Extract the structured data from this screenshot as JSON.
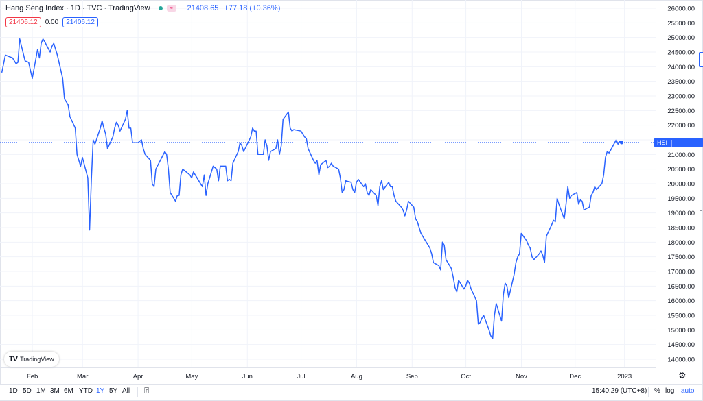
{
  "header": {
    "title": "Hang Seng Index · 1D · TVC · TradingView",
    "price": "21408.65",
    "change": "+77.18 (+0.36%)"
  },
  "legend": {
    "value_red": "21406.12",
    "value_mid": "0.00",
    "value_blue": "21406.12"
  },
  "colors": {
    "line": "#2962ff",
    "accent": "#2962ff",
    "negative": "#f23645",
    "live_dot": "#26a69a",
    "grid": "#f0f3fa"
  },
  "price_axis": {
    "ticks": [
      "26000.00",
      "25500.00",
      "25000.00",
      "24500.00",
      "24000.00",
      "23500.00",
      "23000.00",
      "22500.00",
      "22000.00",
      "21500.00",
      "21000.00",
      "20500.00",
      "20000.00",
      "19500.00",
      "19000.00",
      "18500.00",
      "18000.00",
      "17500.00",
      "17000.00",
      "16500.00",
      "16000.00",
      "15500.00",
      "15000.00",
      "14500.00",
      "14000.00"
    ]
  },
  "last_price": {
    "symbol": "HSI",
    "value": "21408.65"
  },
  "time_axis": {
    "labels": [
      "Feb",
      "Mar",
      "Apr",
      "May",
      "Jun",
      "Jul",
      "Aug",
      "Sep",
      "Oct",
      "Nov",
      "Dec",
      "2023"
    ]
  },
  "watermark": {
    "logo": "TV",
    "text": "TradingView"
  },
  "bottom_bar": {
    "ranges": [
      "1D",
      "5D",
      "1M",
      "3M",
      "6M",
      "YTD",
      "1Y",
      "5Y",
      "All"
    ],
    "active_range": "1Y",
    "compare_icon": "calendar-range-icon",
    "time": "15:40:29 (UTC+8)",
    "percent": "%",
    "log": "log",
    "auto": "auto"
  },
  "settings_icon": "gear-icon",
  "chart_data": {
    "type": "line",
    "title": "Hang Seng Index · 1D · TVC · TradingView",
    "xlabel": "",
    "ylabel": "",
    "ylim": [
      14000,
      26000
    ],
    "x_tick_labels": [
      "Feb",
      "Mar",
      "Apr",
      "May",
      "Jun",
      "Jul",
      "Aug",
      "Sep",
      "Oct",
      "Nov",
      "Dec",
      "2023"
    ],
    "grid": true,
    "series": [
      {
        "name": "HSI",
        "points": [
          [
            "2022-01-18",
            23800
          ],
          [
            "2022-01-20",
            24400
          ],
          [
            "2022-01-24",
            24300
          ],
          [
            "2022-01-26",
            24100
          ],
          [
            "2022-01-27",
            24150
          ],
          [
            "2022-01-28",
            24950
          ],
          [
            "2022-01-31",
            24200
          ],
          [
            "2022-02-02",
            24150
          ],
          [
            "2022-02-04",
            23600
          ],
          [
            "2022-02-07",
            24600
          ],
          [
            "2022-02-08",
            24300
          ],
          [
            "2022-02-09",
            24800
          ],
          [
            "2022-02-10",
            24950
          ],
          [
            "2022-02-11",
            24850
          ],
          [
            "2022-02-14",
            24500
          ],
          [
            "2022-02-15",
            24700
          ],
          [
            "2022-02-16",
            24800
          ],
          [
            "2022-02-17",
            24600
          ],
          [
            "2022-02-18",
            24400
          ],
          [
            "2022-02-21",
            23600
          ],
          [
            "2022-02-22",
            22900
          ],
          [
            "2022-02-23",
            22800
          ],
          [
            "2022-02-24",
            22700
          ],
          [
            "2022-02-25",
            22300
          ],
          [
            "2022-02-28",
            21900
          ],
          [
            "2022-03-01",
            21000
          ],
          [
            "2022-03-02",
            20800
          ],
          [
            "2022-03-03",
            20600
          ],
          [
            "2022-03-04",
            20900
          ],
          [
            "2022-03-07",
            20200
          ],
          [
            "2022-03-08",
            18415
          ],
          [
            "2022-03-09",
            20150
          ],
          [
            "2022-03-10",
            21500
          ],
          [
            "2022-03-11",
            21350
          ],
          [
            "2022-03-14",
            21900
          ],
          [
            "2022-03-15",
            22150
          ],
          [
            "2022-03-16",
            21900
          ],
          [
            "2022-03-17",
            21700
          ],
          [
            "2022-03-18",
            21200
          ],
          [
            "2022-03-21",
            21600
          ],
          [
            "2022-03-22",
            21900
          ],
          [
            "2022-03-23",
            22100
          ],
          [
            "2022-03-24",
            22000
          ],
          [
            "2022-03-25",
            21800
          ],
          [
            "2022-03-28",
            22200
          ],
          [
            "2022-03-29",
            22500
          ],
          [
            "2022-03-30",
            21900
          ],
          [
            "2022-03-31",
            21900
          ],
          [
            "2022-04-01",
            21400
          ],
          [
            "2022-04-04",
            21400
          ],
          [
            "2022-04-06",
            21500
          ],
          [
            "2022-04-07",
            21200
          ],
          [
            "2022-04-08",
            21000
          ],
          [
            "2022-04-11",
            20800
          ],
          [
            "2022-04-12",
            20000
          ],
          [
            "2022-04-13",
            19900
          ],
          [
            "2022-04-14",
            20500
          ],
          [
            "2022-04-19",
            21100
          ],
          [
            "2022-04-20",
            21000
          ],
          [
            "2022-04-21",
            20500
          ],
          [
            "2022-04-22",
            19700
          ],
          [
            "2022-04-25",
            19400
          ],
          [
            "2022-04-26",
            19600
          ],
          [
            "2022-04-27",
            19600
          ],
          [
            "2022-04-28",
            20300
          ],
          [
            "2022-04-29",
            20500
          ],
          [
            "2022-05-03",
            20300
          ],
          [
            "2022-05-04",
            20200
          ],
          [
            "2022-05-05",
            20400
          ],
          [
            "2022-05-06",
            20300
          ],
          [
            "2022-05-10",
            19900
          ],
          [
            "2022-05-11",
            20300
          ],
          [
            "2022-05-12",
            19600
          ],
          [
            "2022-05-13",
            20000
          ],
          [
            "2022-05-16",
            20600
          ],
          [
            "2022-05-17",
            20550
          ],
          [
            "2022-05-18",
            20500
          ],
          [
            "2022-05-19",
            20100
          ],
          [
            "2022-05-20",
            20600
          ],
          [
            "2022-05-23",
            20600
          ],
          [
            "2022-05-24",
            20100
          ],
          [
            "2022-05-25",
            20150
          ],
          [
            "2022-05-26",
            20100
          ],
          [
            "2022-05-27",
            20700
          ],
          [
            "2022-05-30",
            21100
          ],
          [
            "2022-05-31",
            21400
          ],
          [
            "2022-06-01",
            21300
          ],
          [
            "2022-06-02",
            21100
          ],
          [
            "2022-06-06",
            21600
          ],
          [
            "2022-06-07",
            21900
          ],
          [
            "2022-06-08",
            21800
          ],
          [
            "2022-06-09",
            21800
          ],
          [
            "2022-06-10",
            21000
          ],
          [
            "2022-06-13",
            21000
          ],
          [
            "2022-06-14",
            21500
          ],
          [
            "2022-06-15",
            21300
          ],
          [
            "2022-06-16",
            20800
          ],
          [
            "2022-06-17",
            21100
          ],
          [
            "2022-06-20",
            21200
          ],
          [
            "2022-06-21",
            21500
          ],
          [
            "2022-06-22",
            21000
          ],
          [
            "2022-06-23",
            21300
          ],
          [
            "2022-06-24",
            22200
          ],
          [
            "2022-06-27",
            22450
          ],
          [
            "2022-06-28",
            21900
          ],
          [
            "2022-06-29",
            21800
          ],
          [
            "2022-06-30",
            21850
          ],
          [
            "2022-07-04",
            21800
          ],
          [
            "2022-07-05",
            21700
          ],
          [
            "2022-07-06",
            21600
          ],
          [
            "2022-07-07",
            21550
          ],
          [
            "2022-07-08",
            21200
          ],
          [
            "2022-07-11",
            20800
          ],
          [
            "2022-07-12",
            20700
          ],
          [
            "2022-07-13",
            20800
          ],
          [
            "2022-07-14",
            20300
          ],
          [
            "2022-07-15",
            20650
          ],
          [
            "2022-07-18",
            20800
          ],
          [
            "2022-07-19",
            20550
          ],
          [
            "2022-07-20",
            20600
          ],
          [
            "2022-07-21",
            20700
          ],
          [
            "2022-07-22",
            20600
          ],
          [
            "2022-07-25",
            20500
          ],
          [
            "2022-07-26",
            20200
          ],
          [
            "2022-07-27",
            19700
          ],
          [
            "2022-07-28",
            19800
          ],
          [
            "2022-07-29",
            20100
          ],
          [
            "2022-08-01",
            20050
          ],
          [
            "2022-08-02",
            19800
          ],
          [
            "2022-08-03",
            19700
          ],
          [
            "2022-08-04",
            20050
          ],
          [
            "2022-08-05",
            20150
          ],
          [
            "2022-08-08",
            19900
          ],
          [
            "2022-08-09",
            20000
          ],
          [
            "2022-08-10",
            19700
          ],
          [
            "2022-08-11",
            19600
          ],
          [
            "2022-08-12",
            19800
          ],
          [
            "2022-08-15",
            19600
          ],
          [
            "2022-08-16",
            19250
          ],
          [
            "2022-08-17",
            19900
          ],
          [
            "2022-08-18",
            20100
          ],
          [
            "2022-08-19",
            19800
          ],
          [
            "2022-08-22",
            20050
          ],
          [
            "2022-08-23",
            19900
          ],
          [
            "2022-08-24",
            19900
          ],
          [
            "2022-08-25",
            19600
          ],
          [
            "2022-08-26",
            19400
          ],
          [
            "2022-08-29",
            19200
          ],
          [
            "2022-08-30",
            19100
          ],
          [
            "2022-08-31",
            18900
          ],
          [
            "2022-09-01",
            19100
          ],
          [
            "2022-09-02",
            19400
          ],
          [
            "2022-09-05",
            19200
          ],
          [
            "2022-09-06",
            18800
          ],
          [
            "2022-09-07",
            18700
          ],
          [
            "2022-09-08",
            18500
          ],
          [
            "2022-09-09",
            18300
          ],
          [
            "2022-09-12",
            18000
          ],
          [
            "2022-09-13",
            17900
          ],
          [
            "2022-09-14",
            17800
          ],
          [
            "2022-09-15",
            17600
          ],
          [
            "2022-09-16",
            17300
          ],
          [
            "2022-09-19",
            17200
          ],
          [
            "2022-09-20",
            17050
          ],
          [
            "2022-09-21",
            18000
          ],
          [
            "2022-09-22",
            17900
          ],
          [
            "2022-09-23",
            17400
          ],
          [
            "2022-09-26",
            17100
          ],
          [
            "2022-09-27",
            16800
          ],
          [
            "2022-09-28",
            16450
          ],
          [
            "2022-09-29",
            16300
          ],
          [
            "2022-09-30",
            16700
          ],
          [
            "2022-10-03",
            16400
          ],
          [
            "2022-10-04",
            16500
          ],
          [
            "2022-10-05",
            16700
          ],
          [
            "2022-10-06",
            16600
          ],
          [
            "2022-10-07",
            16400
          ],
          [
            "2022-10-10",
            16000
          ],
          [
            "2022-10-11",
            15200
          ],
          [
            "2022-10-12",
            15250
          ],
          [
            "2022-10-13",
            15400
          ],
          [
            "2022-10-14",
            15500
          ],
          [
            "2022-10-17",
            15000
          ],
          [
            "2022-10-18",
            14800
          ],
          [
            "2022-10-19",
            14700
          ],
          [
            "2022-10-20",
            15500
          ],
          [
            "2022-10-21",
            15900
          ],
          [
            "2022-10-24",
            15300
          ],
          [
            "2022-10-25",
            16200
          ],
          [
            "2022-10-26",
            16600
          ],
          [
            "2022-10-27",
            16500
          ],
          [
            "2022-10-28",
            16100
          ],
          [
            "2022-10-31",
            16900
          ],
          [
            "2022-11-01",
            17300
          ],
          [
            "2022-11-02",
            17500
          ],
          [
            "2022-11-03",
            17600
          ],
          [
            "2022-11-04",
            18300
          ],
          [
            "2022-11-07",
            18050
          ],
          [
            "2022-11-08",
            17900
          ],
          [
            "2022-11-09",
            17800
          ],
          [
            "2022-11-10",
            17500
          ],
          [
            "2022-11-11",
            17400
          ],
          [
            "2022-11-14",
            17600
          ],
          [
            "2022-11-15",
            17700
          ],
          [
            "2022-11-16",
            17550
          ],
          [
            "2022-11-17",
            17300
          ],
          [
            "2022-11-18",
            18200
          ],
          [
            "2022-11-21",
            18600
          ],
          [
            "2022-11-22",
            18750
          ],
          [
            "2022-11-23",
            18700
          ],
          [
            "2022-11-24",
            19500
          ],
          [
            "2022-11-25",
            19300
          ],
          [
            "2022-11-28",
            18800
          ],
          [
            "2022-11-29",
            19300
          ],
          [
            "2022-11-30",
            19900
          ],
          [
            "2022-12-01",
            19500
          ],
          [
            "2022-12-02",
            19600
          ],
          [
            "2022-12-05",
            19700
          ],
          [
            "2022-12-06",
            19300
          ],
          [
            "2022-12-07",
            19450
          ],
          [
            "2022-12-08",
            19400
          ],
          [
            "2022-12-09",
            19100
          ],
          [
            "2022-12-12",
            19200
          ],
          [
            "2022-12-13",
            19600
          ],
          [
            "2022-12-14",
            19700
          ],
          [
            "2022-12-15",
            19900
          ],
          [
            "2022-12-16",
            19800
          ],
          [
            "2022-12-19",
            20000
          ],
          [
            "2022-12-20",
            20300
          ],
          [
            "2022-12-21",
            20900
          ],
          [
            "2022-12-22",
            21100
          ],
          [
            "2022-12-23",
            21050
          ],
          [
            "2022-12-27",
            21500
          ],
          [
            "2022-12-28",
            21350
          ],
          [
            "2022-12-29",
            21450
          ],
          [
            "2022-12-30",
            21408.65
          ]
        ]
      }
    ]
  }
}
